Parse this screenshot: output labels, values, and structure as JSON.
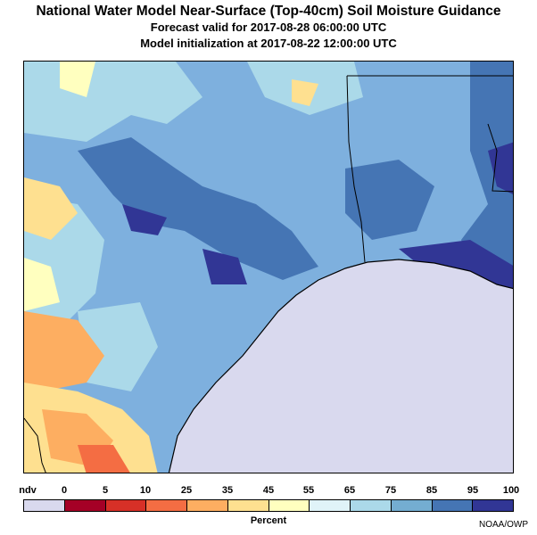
{
  "header": {
    "title": "National Water Model Near-Surface (Top-40cm) Soil Moisture Guidance",
    "valid": "Forecast valid for 2017-08-28 06:00:00 UTC",
    "init": "Model initialization at 2017-08-22 12:00:00 UTC"
  },
  "legend": {
    "labels": [
      "ndv",
      "0",
      "5",
      "10",
      "25",
      "35",
      "45",
      "55",
      "65",
      "75",
      "85",
      "95",
      "100"
    ],
    "colors": [
      "#d9d9ee",
      "#a50026",
      "#d73027",
      "#f46d43",
      "#fdae61",
      "#fee090",
      "#ffffbf",
      "#e0f3f8",
      "#abd9e9",
      "#74add1",
      "#4575b4",
      "#313695"
    ],
    "units": "Percent"
  },
  "colors": {
    "ocean": "#d9d9ee",
    "land_base": "#7eb0de",
    "coast": "#000000"
  },
  "credit": "NOAA/OWP"
}
